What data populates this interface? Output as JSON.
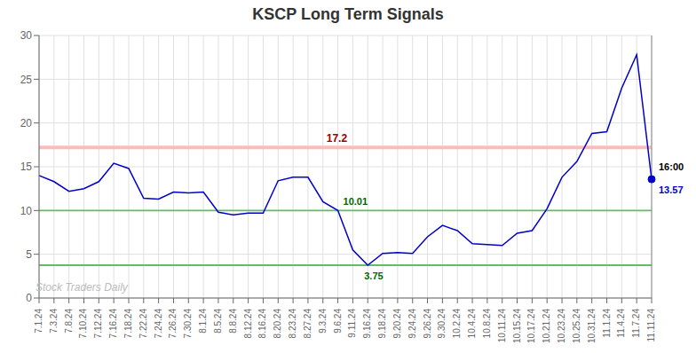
{
  "chart_data": {
    "type": "line",
    "title": "KSCP Long Term Signals",
    "categories": [
      "7.1.24",
      "7.3.24",
      "7.8.24",
      "7.10.24",
      "7.12.24",
      "7.16.24",
      "7.18.24",
      "7.22.24",
      "7.24.24",
      "7.26.24",
      "7.30.24",
      "8.1.24",
      "8.5.24",
      "8.8.24",
      "8.12.24",
      "8.16.24",
      "8.20.24",
      "8.23.24",
      "8.27.24",
      "9.3.24",
      "9.6.24",
      "9.11.24",
      "9.16.24",
      "9.18.24",
      "9.20.24",
      "9.24.24",
      "9.26.24",
      "9.30.24",
      "10.2.24",
      "10.4.24",
      "10.8.24",
      "10.11.24",
      "10.15.24",
      "10.17.24",
      "10.21.24",
      "10.23.24",
      "10.25.24",
      "10.31.24",
      "11.1.24",
      "11.4.24",
      "11.7.24",
      "11.11.24"
    ],
    "values": [
      14.0,
      13.3,
      12.2,
      12.5,
      13.3,
      15.4,
      14.8,
      11.4,
      11.3,
      12.1,
      12.0,
      12.1,
      9.8,
      9.5,
      9.7,
      9.7,
      13.4,
      13.8,
      13.8,
      11.0,
      10.01,
      5.5,
      3.75,
      5.1,
      5.2,
      5.1,
      7.0,
      8.3,
      7.7,
      6.2,
      6.1,
      6.0,
      7.4,
      7.7,
      10.2,
      13.8,
      15.6,
      18.8,
      19.0,
      24.0,
      27.8,
      13.57
    ],
    "color": "#0000cc",
    "ylim": [
      0,
      30
    ],
    "yticks": [
      0,
      5,
      10,
      15,
      20,
      25,
      30
    ],
    "grid": true,
    "hlines": [
      {
        "value": 17.2,
        "color": "#ffbbbb"
      },
      {
        "value": 10.0,
        "color": "#66bb66"
      },
      {
        "value": 3.75,
        "color": "#66bb66"
      }
    ],
    "vlines": [
      {
        "x": "11.11.24",
        "color": "#888888"
      }
    ],
    "annotations": [
      {
        "text": "17.2",
        "x": "9.3.24",
        "y": 17.2,
        "color": "#990000"
      },
      {
        "text": "10.01",
        "x": "9.6.24",
        "y": 10.01,
        "color": "#006600"
      },
      {
        "text": "3.75",
        "x": "9.16.24",
        "y": 3.75,
        "color": "#006600"
      },
      {
        "text": "16:00",
        "x": "11.11.24",
        "y": 13.57,
        "color": "#000000"
      },
      {
        "text": "13.57",
        "x": "11.11.24",
        "y": 13.57,
        "color": "#0000cc"
      }
    ],
    "watermark": "Stock Traders Daily"
  }
}
